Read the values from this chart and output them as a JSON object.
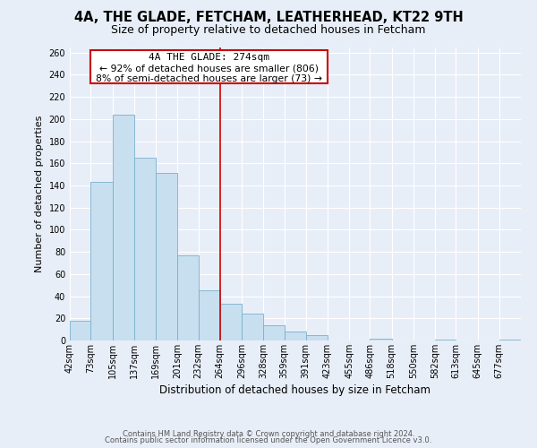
{
  "title": "4A, THE GLADE, FETCHAM, LEATHERHEAD, KT22 9TH",
  "subtitle": "Size of property relative to detached houses in Fetcham",
  "xlabel": "Distribution of detached houses by size in Fetcham",
  "ylabel": "Number of detached properties",
  "bin_labels": [
    "42sqm",
    "73sqm",
    "105sqm",
    "137sqm",
    "169sqm",
    "201sqm",
    "232sqm",
    "264sqm",
    "296sqm",
    "328sqm",
    "359sqm",
    "391sqm",
    "423sqm",
    "455sqm",
    "486sqm",
    "518sqm",
    "550sqm",
    "582sqm",
    "613sqm",
    "645sqm",
    "677sqm"
  ],
  "bin_edges": [
    42,
    73,
    105,
    137,
    169,
    201,
    232,
    264,
    296,
    328,
    359,
    391,
    423,
    455,
    486,
    518,
    550,
    582,
    613,
    645,
    677
  ],
  "bar_heights": [
    18,
    143,
    204,
    165,
    151,
    77,
    45,
    33,
    24,
    14,
    8,
    5,
    0,
    0,
    2,
    0,
    0,
    1,
    0,
    0,
    1
  ],
  "bar_color": "#c8dff0",
  "bar_edge_color": "#7ab0cc",
  "vline_x": 264,
  "vline_color": "#cc0000",
  "annotation_title": "4A THE GLADE: 274sqm",
  "annotation_line1": "← 92% of detached houses are smaller (806)",
  "annotation_line2": "8% of semi-detached houses are larger (73) →",
  "annotation_box_color": "#cc0000",
  "ylim": [
    0,
    265
  ],
  "yticks": [
    0,
    20,
    40,
    60,
    80,
    100,
    120,
    140,
    160,
    180,
    200,
    220,
    240,
    260
  ],
  "footer1": "Contains HM Land Registry data © Crown copyright and database right 2024.",
  "footer2": "Contains public sector information licensed under the Open Government Licence v3.0.",
  "bg_color": "#e8eef8",
  "grid_color": "#ffffff",
  "title_fontsize": 10.5,
  "subtitle_fontsize": 9,
  "ylabel_fontsize": 8,
  "xlabel_fontsize": 8.5,
  "tick_fontsize": 7,
  "footer_fontsize": 6
}
